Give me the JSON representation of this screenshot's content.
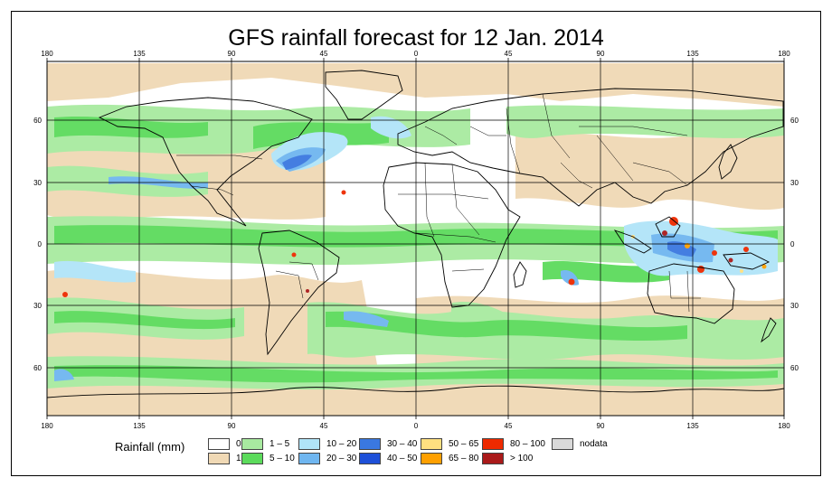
{
  "title": "GFS rainfall forecast for 12 Jan. 2014",
  "map": {
    "top_axis_labels": [
      "180",
      "135",
      "90",
      "45",
      "0",
      "45",
      "90",
      "135",
      "180"
    ],
    "bottom_axis_labels": [
      "180",
      "135",
      "90",
      "45",
      "0",
      "45",
      "90",
      "135",
      "180"
    ],
    "left_axis_labels": [
      "60",
      "30",
      "0",
      "30",
      "60"
    ],
    "right_axis_labels": [
      "60",
      "30",
      "0",
      "30",
      "60"
    ]
  },
  "legend": {
    "title": "Rainfall (mm)",
    "items": [
      {
        "label": "0",
        "color": "#ffffff"
      },
      {
        "label": "1",
        "color": "#f0d9b5"
      },
      {
        "label": "1 – 5",
        "color": "#a8eaa0"
      },
      {
        "label": "5 – 10",
        "color": "#5cdb5c"
      },
      {
        "label": "10 – 20",
        "color": "#b0e4f8"
      },
      {
        "label": "20 – 30",
        "color": "#6fb6f0"
      },
      {
        "label": "30 – 40",
        "color": "#3a78e0"
      },
      {
        "label": "40 – 50",
        "color": "#1e50d8"
      },
      {
        "label": "50 – 65",
        "color": "#ffe080"
      },
      {
        "label": "65 – 80",
        "color": "#ffa000"
      },
      {
        "label": "80 – 100",
        "color": "#ee2a00"
      },
      {
        "label": "> 100",
        "color": "#aa1a1a"
      },
      {
        "label": "nodata",
        "color": "#d9d9d9"
      }
    ]
  }
}
